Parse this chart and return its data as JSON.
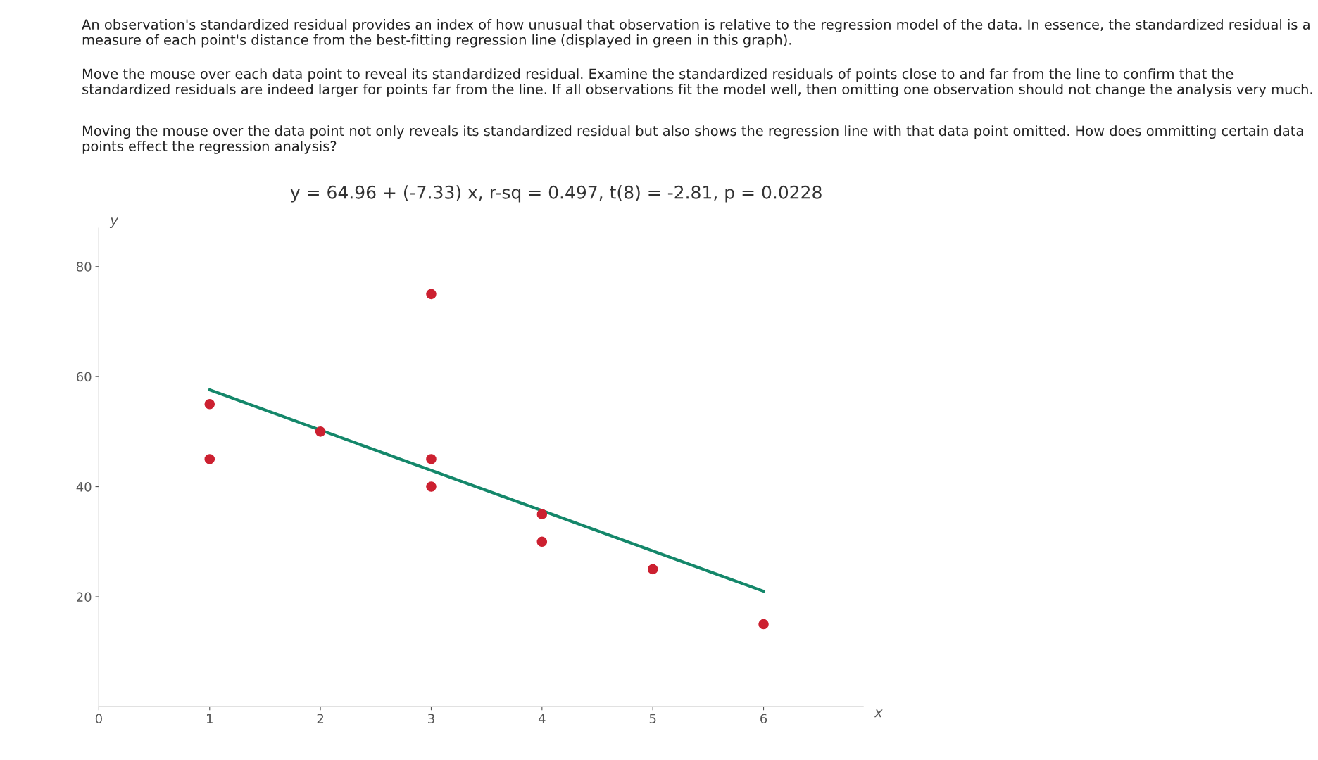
{
  "chart_data": {
    "type": "scatter",
    "title": "y = 64.96 + (-7.33) x, r-sq = 0.497, t(8) = -2.81, p = 0.0228",
    "xlabel": "x",
    "ylabel": "y",
    "annotations": [
      "An observation's standardized residual provides an index of how unusual that observation is relative to the regression model of the data. In essence, the standardized residual is a measure of each point's distance from the best-fitting regression line (displayed in green in this graph).",
      "Move the mouse over each data point to reveal its standardized residual. Examine the standardized residuals of points close to and far from the line to confirm that the standardized residuals are indeed larger for points far from the line. If all observations fit the model well, then omitting one observation should not change the analysis very much.",
      "Moving the mouse over the data point not only reveals its standardized residual but also shows the regression line with that data point omitted. How does ommitting certain data points effect the regression analysis?"
    ],
    "series": [
      {
        "type": "line",
        "color": "#14876a",
        "x": [
          1,
          6
        ],
        "values": [
          57.6,
          21.0
        ],
        "marker": "none",
        "line_style": "solid"
      },
      {
        "color": "#cc2030",
        "x": [
          1,
          1,
          2,
          3,
          3,
          3,
          4,
          4,
          5,
          6
        ],
        "values": [
          55,
          45,
          50,
          75,
          45,
          40,
          35,
          30,
          25,
          15
        ],
        "marker": "circle"
      }
    ],
    "xlim": [
      0,
      6.9
    ],
    "ylim": [
      0,
      87
    ],
    "xticks": [
      0,
      1,
      2,
      3,
      4,
      5,
      6
    ],
    "yticks": [
      20,
      40,
      60,
      80
    ],
    "grid": false,
    "legend": false
  }
}
